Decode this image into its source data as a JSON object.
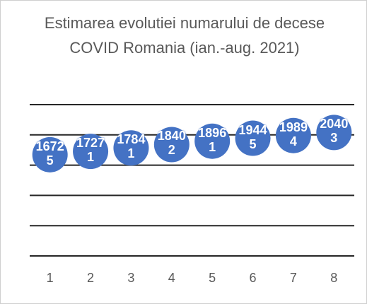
{
  "chart_data": {
    "type": "scatter",
    "title": "Estimarea evolutiei numarului de decese COVID Romania (ian.-aug. 2021)",
    "categories": [
      "1",
      "2",
      "3",
      "4",
      "5",
      "6",
      "7",
      "8"
    ],
    "values": [
      16725,
      17271,
      17841,
      18402,
      18961,
      19445,
      19894,
      20403
    ],
    "color": "#4472c4",
    "ylim": [
      0,
      25000
    ],
    "yticks": [
      0,
      5000,
      10000,
      15000,
      20000,
      25000
    ],
    "grid": true
  }
}
